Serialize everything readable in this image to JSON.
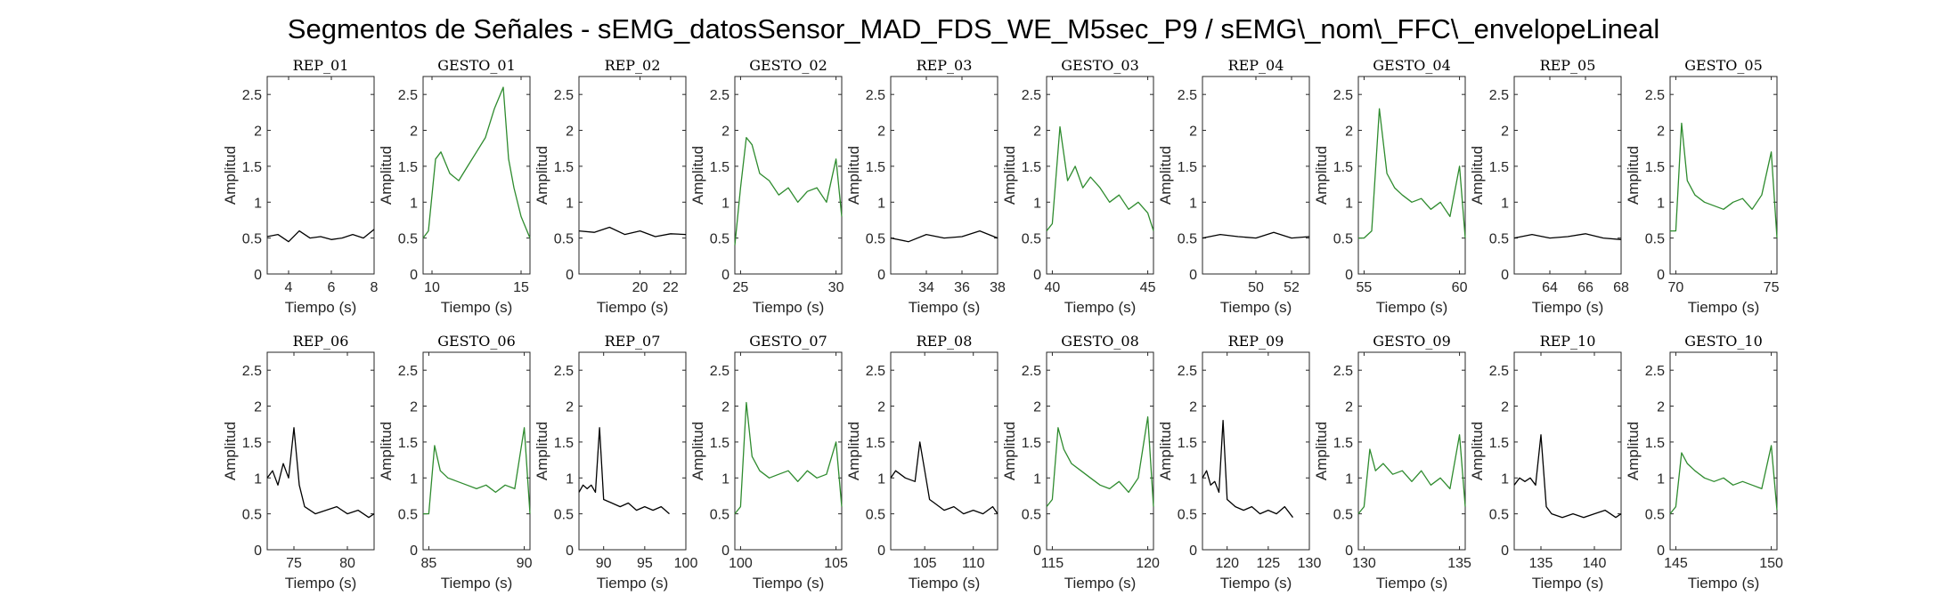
{
  "figure": {
    "title": "Segmentos de Señales - sEMG_datosSensor_MAD_FDS_WE_M5sec_P9 / sEMG\\_nom\\_FFC\\_envelopeLineal"
  },
  "colors": {
    "rep": "#000000",
    "gesto": "#2e8b2e",
    "axes": "#262626"
  },
  "chart_data": [
    {
      "type": "line",
      "title": "REP_01",
      "xlabel": "Tiempo (s)",
      "ylabel": "Amplitud",
      "xlim": [
        3,
        8
      ],
      "ylim": [
        0,
        2.75
      ],
      "xticks": [
        4,
        6,
        8
      ],
      "yticks": [
        0,
        0.5,
        1,
        1.5,
        2,
        2.5
      ],
      "series": [
        {
          "color": "rep",
          "x": [
            3,
            3.5,
            4,
            4.5,
            5,
            5.5,
            6,
            6.5,
            7,
            7.5,
            8
          ],
          "y": [
            0.52,
            0.55,
            0.45,
            0.6,
            0.5,
            0.52,
            0.48,
            0.5,
            0.55,
            0.5,
            0.62
          ]
        }
      ]
    },
    {
      "type": "line",
      "title": "GESTO_01",
      "xlabel": "Tiempo (s)",
      "ylabel": "Amplitud",
      "xlim": [
        9.5,
        15.5
      ],
      "ylim": [
        0,
        2.75
      ],
      "xticks": [
        10,
        15
      ],
      "yticks": [
        0,
        0.5,
        1,
        1.5,
        2,
        2.5
      ],
      "series": [
        {
          "color": "gesto",
          "x": [
            9.5,
            9.8,
            10.2,
            10.5,
            11,
            11.5,
            12,
            12.5,
            13,
            13.5,
            14,
            14.3,
            14.6,
            15,
            15.5
          ],
          "y": [
            0.5,
            0.6,
            1.6,
            1.7,
            1.4,
            1.3,
            1.5,
            1.7,
            1.9,
            2.3,
            2.6,
            1.6,
            1.2,
            0.8,
            0.5
          ]
        }
      ]
    },
    {
      "type": "line",
      "title": "REP_02",
      "xlabel": "Tiempo (s)",
      "ylabel": "Amplitud",
      "xlim": [
        16,
        23
      ],
      "ylim": [
        0,
        2.75
      ],
      "xticks": [
        20,
        22
      ],
      "yticks": [
        0,
        0.5,
        1,
        1.5,
        2,
        2.5
      ],
      "series": [
        {
          "color": "rep",
          "x": [
            16,
            17,
            18,
            19,
            20,
            21,
            22,
            23
          ],
          "y": [
            0.6,
            0.58,
            0.65,
            0.55,
            0.6,
            0.52,
            0.56,
            0.55
          ]
        }
      ]
    },
    {
      "type": "line",
      "title": "GESTO_02",
      "xlabel": "Tiempo (s)",
      "ylabel": "Amplitud",
      "xlim": [
        24.7,
        30.3
      ],
      "ylim": [
        0,
        2.75
      ],
      "xticks": [
        25,
        30
      ],
      "yticks": [
        0,
        0.5,
        1,
        1.5,
        2,
        2.5
      ],
      "series": [
        {
          "color": "gesto",
          "x": [
            24.7,
            25,
            25.3,
            25.6,
            26,
            26.5,
            27,
            27.5,
            28,
            28.5,
            29,
            29.5,
            30,
            30.3
          ],
          "y": [
            0.4,
            1.2,
            1.9,
            1.8,
            1.4,
            1.3,
            1.1,
            1.2,
            1.0,
            1.15,
            1.2,
            1.0,
            1.6,
            0.8
          ]
        }
      ]
    },
    {
      "type": "line",
      "title": "REP_03",
      "xlabel": "Tiempo (s)",
      "ylabel": "Amplitud",
      "xlim": [
        32,
        38
      ],
      "ylim": [
        0,
        2.75
      ],
      "xticks": [
        34,
        36,
        38
      ],
      "yticks": [
        0,
        0.5,
        1,
        1.5,
        2,
        2.5
      ],
      "series": [
        {
          "color": "rep",
          "x": [
            32,
            33,
            34,
            35,
            36,
            37,
            38
          ],
          "y": [
            0.5,
            0.45,
            0.55,
            0.5,
            0.52,
            0.6,
            0.5
          ]
        }
      ]
    },
    {
      "type": "line",
      "title": "GESTO_03",
      "xlabel": "Tiempo (s)",
      "ylabel": "Amplitud",
      "xlim": [
        39.7,
        45.3
      ],
      "ylim": [
        0,
        2.75
      ],
      "xticks": [
        40,
        45
      ],
      "yticks": [
        0,
        0.5,
        1,
        1.5,
        2,
        2.5
      ],
      "series": [
        {
          "color": "gesto",
          "x": [
            39.7,
            40,
            40.4,
            40.8,
            41.2,
            41.6,
            42,
            42.5,
            43,
            43.5,
            44,
            44.5,
            45,
            45.3
          ],
          "y": [
            0.6,
            0.7,
            2.05,
            1.3,
            1.5,
            1.2,
            1.35,
            1.2,
            1.0,
            1.1,
            0.9,
            1.0,
            0.85,
            0.6
          ]
        }
      ]
    },
    {
      "type": "line",
      "title": "REP_04",
      "xlabel": "Tiempo (s)",
      "ylabel": "Amplitud",
      "xlim": [
        47,
        53
      ],
      "ylim": [
        0,
        2.75
      ],
      "xticks": [
        50,
        52
      ],
      "yticks": [
        0,
        0.5,
        1,
        1.5,
        2,
        2.5
      ],
      "series": [
        {
          "color": "rep",
          "x": [
            47,
            48,
            49,
            50,
            51,
            52,
            53
          ],
          "y": [
            0.5,
            0.55,
            0.52,
            0.5,
            0.58,
            0.5,
            0.52
          ]
        }
      ]
    },
    {
      "type": "line",
      "title": "GESTO_04",
      "xlabel": "Tiempo (s)",
      "ylabel": "Amplitud",
      "xlim": [
        54.7,
        60.3
      ],
      "ylim": [
        0,
        2.75
      ],
      "xticks": [
        55,
        60
      ],
      "yticks": [
        0,
        0.5,
        1,
        1.5,
        2,
        2.5
      ],
      "series": [
        {
          "color": "gesto",
          "x": [
            54.7,
            55,
            55.4,
            55.8,
            56.2,
            56.6,
            57,
            57.5,
            58,
            58.5,
            59,
            59.5,
            60,
            60.3
          ],
          "y": [
            0.5,
            0.5,
            0.6,
            2.3,
            1.4,
            1.2,
            1.1,
            1.0,
            1.05,
            0.9,
            1.0,
            0.8,
            1.5,
            0.5
          ]
        }
      ]
    },
    {
      "type": "line",
      "title": "REP_05",
      "xlabel": "Tiempo (s)",
      "ylabel": "Amplitud",
      "xlim": [
        62,
        68
      ],
      "ylim": [
        0,
        2.75
      ],
      "xticks": [
        64,
        66,
        68
      ],
      "yticks": [
        0,
        0.5,
        1,
        1.5,
        2,
        2.5
      ],
      "series": [
        {
          "color": "rep",
          "x": [
            62,
            63,
            64,
            65,
            66,
            67,
            68
          ],
          "y": [
            0.5,
            0.55,
            0.5,
            0.52,
            0.56,
            0.5,
            0.48
          ]
        }
      ]
    },
    {
      "type": "line",
      "title": "GESTO_05",
      "xlabel": "Tiempo (s)",
      "ylabel": "Amplitud",
      "xlim": [
        69.7,
        75.3
      ],
      "ylim": [
        0,
        2.75
      ],
      "xticks": [
        70,
        75
      ],
      "yticks": [
        0,
        0.5,
        1,
        1.5,
        2,
        2.5
      ],
      "series": [
        {
          "color": "gesto",
          "x": [
            69.7,
            70,
            70.3,
            70.6,
            71,
            71.5,
            72,
            72.5,
            73,
            73.5,
            74,
            74.5,
            75,
            75.3
          ],
          "y": [
            0.6,
            0.6,
            2.1,
            1.3,
            1.1,
            1.0,
            0.95,
            0.9,
            1.0,
            1.05,
            0.9,
            1.1,
            1.7,
            0.5
          ]
        }
      ]
    },
    {
      "type": "line",
      "title": "REP_06",
      "xlabel": "Tiempo (s)",
      "ylabel": "Amplitud",
      "xlim": [
        72.5,
        82.5
      ],
      "ylim": [
        0,
        2.75
      ],
      "xticks": [
        75,
        80
      ],
      "yticks": [
        0,
        0.5,
        1,
        1.5,
        2,
        2.5
      ],
      "series": [
        {
          "color": "rep",
          "x": [
            72.5,
            73,
            73.5,
            74,
            74.5,
            75,
            75.5,
            76,
            77,
            78,
            79,
            80,
            81,
            82,
            82.5
          ],
          "y": [
            1.0,
            1.1,
            0.9,
            1.2,
            1.0,
            1.7,
            0.9,
            0.6,
            0.5,
            0.55,
            0.6,
            0.5,
            0.55,
            0.45,
            0.5
          ]
        }
      ]
    },
    {
      "type": "line",
      "title": "GESTO_06",
      "xlabel": "Tiempo (s)",
      "ylabel": "Amplitud",
      "xlim": [
        84.7,
        90.3
      ],
      "ylim": [
        0,
        2.75
      ],
      "xticks": [
        85,
        90
      ],
      "yticks": [
        0,
        0.5,
        1,
        1.5,
        2,
        2.5
      ],
      "series": [
        {
          "color": "gesto",
          "x": [
            84.7,
            85,
            85.3,
            85.6,
            86,
            86.5,
            87,
            87.5,
            88,
            88.5,
            89,
            89.5,
            90,
            90.3
          ],
          "y": [
            0.5,
            0.5,
            1.45,
            1.1,
            1.0,
            0.95,
            0.9,
            0.85,
            0.9,
            0.8,
            0.9,
            0.85,
            1.7,
            0.5
          ]
        }
      ]
    },
    {
      "type": "line",
      "title": "REP_07",
      "xlabel": "Tiempo (s)",
      "ylabel": "Amplitud",
      "xlim": [
        87,
        100
      ],
      "ylim": [
        0,
        2.75
      ],
      "xticks": [
        90,
        95,
        100
      ],
      "yticks": [
        0,
        0.5,
        1,
        1.5,
        2,
        2.5
      ],
      "series": [
        {
          "color": "rep",
          "x": [
            87,
            87.5,
            88,
            88.5,
            89,
            89.5,
            90,
            91,
            92,
            93,
            94,
            95,
            96,
            97,
            98
          ],
          "y": [
            0.8,
            0.9,
            0.85,
            0.9,
            0.8,
            1.7,
            0.7,
            0.65,
            0.6,
            0.65,
            0.55,
            0.6,
            0.55,
            0.6,
            0.5
          ]
        }
      ]
    },
    {
      "type": "line",
      "title": "GESTO_07",
      "xlabel": "Tiempo (s)",
      "ylabel": "Amplitud",
      "xlim": [
        99.7,
        105.3
      ],
      "ylim": [
        0,
        2.75
      ],
      "xticks": [
        100,
        105
      ],
      "yticks": [
        0,
        0.5,
        1,
        1.5,
        2,
        2.5
      ],
      "series": [
        {
          "color": "gesto",
          "x": [
            99.7,
            100,
            100.3,
            100.6,
            101,
            101.5,
            102,
            102.5,
            103,
            103.5,
            104,
            104.5,
            105,
            105.3
          ],
          "y": [
            0.5,
            0.6,
            2.05,
            1.3,
            1.1,
            1.0,
            1.05,
            1.1,
            0.95,
            1.1,
            1.0,
            1.05,
            1.5,
            0.6
          ]
        }
      ]
    },
    {
      "type": "line",
      "title": "REP_08",
      "xlabel": "Tiempo (s)",
      "ylabel": "Amplitud",
      "xlim": [
        101.5,
        112.5
      ],
      "ylim": [
        0,
        2.75
      ],
      "xticks": [
        105,
        110
      ],
      "yticks": [
        0,
        0.5,
        1,
        1.5,
        2,
        2.5
      ],
      "series": [
        {
          "color": "rep",
          "x": [
            101.5,
            102,
            103,
            104,
            104.5,
            105,
            105.5,
            106,
            107,
            108,
            109,
            110,
            111,
            112,
            112.5
          ],
          "y": [
            1.0,
            1.1,
            1.0,
            0.95,
            1.5,
            1.1,
            0.7,
            0.65,
            0.55,
            0.6,
            0.5,
            0.55,
            0.5,
            0.6,
            0.5
          ]
        }
      ]
    },
    {
      "type": "line",
      "title": "GESTO_08",
      "xlabel": "Tiempo (s)",
      "ylabel": "Amplitud",
      "xlim": [
        114.7,
        120.3
      ],
      "ylim": [
        0,
        2.75
      ],
      "xticks": [
        115,
        120
      ],
      "yticks": [
        0,
        0.5,
        1,
        1.5,
        2,
        2.5
      ],
      "series": [
        {
          "color": "gesto",
          "x": [
            114.7,
            115,
            115.3,
            115.6,
            116,
            116.5,
            117,
            117.5,
            118,
            118.5,
            119,
            119.5,
            120,
            120.3
          ],
          "y": [
            0.6,
            0.7,
            1.7,
            1.4,
            1.2,
            1.1,
            1.0,
            0.9,
            0.85,
            0.95,
            0.8,
            1.0,
            1.85,
            0.6
          ]
        }
      ]
    },
    {
      "type": "line",
      "title": "REP_09",
      "xlabel": "Tiempo (s)",
      "ylabel": "Amplitud",
      "xlim": [
        117,
        130
      ],
      "ylim": [
        0,
        2.75
      ],
      "xticks": [
        120,
        125,
        130
      ],
      "yticks": [
        0,
        0.5,
        1,
        1.5,
        2,
        2.5
      ],
      "series": [
        {
          "color": "rep",
          "x": [
            117,
            117.5,
            118,
            118.5,
            119,
            119.5,
            120,
            120.5,
            121,
            122,
            123,
            124,
            125,
            126,
            127,
            128
          ],
          "y": [
            1.0,
            1.1,
            0.9,
            0.95,
            0.8,
            1.8,
            0.7,
            0.65,
            0.6,
            0.55,
            0.6,
            0.5,
            0.55,
            0.5,
            0.6,
            0.45
          ]
        }
      ]
    },
    {
      "type": "line",
      "title": "GESTO_09",
      "xlabel": "Tiempo (s)",
      "ylabel": "Amplitud",
      "xlim": [
        129.7,
        135.3
      ],
      "ylim": [
        0,
        2.75
      ],
      "xticks": [
        130,
        135
      ],
      "yticks": [
        0,
        0.5,
        1,
        1.5,
        2,
        2.5
      ],
      "series": [
        {
          "color": "gesto",
          "x": [
            129.7,
            130,
            130.3,
            130.6,
            131,
            131.5,
            132,
            132.5,
            133,
            133.5,
            134,
            134.5,
            135,
            135.3
          ],
          "y": [
            0.5,
            0.6,
            1.4,
            1.1,
            1.2,
            1.05,
            1.1,
            0.95,
            1.1,
            0.9,
            1.0,
            0.85,
            1.6,
            0.6
          ]
        }
      ]
    },
    {
      "type": "line",
      "title": "REP_10",
      "xlabel": "Tiempo (s)",
      "ylabel": "Amplitud",
      "xlim": [
        132.5,
        142.5
      ],
      "ylim": [
        0,
        2.75
      ],
      "xticks": [
        135,
        140
      ],
      "yticks": [
        0,
        0.5,
        1,
        1.5,
        2,
        2.5
      ],
      "series": [
        {
          "color": "rep",
          "x": [
            132.5,
            133,
            133.5,
            134,
            134.5,
            135,
            135.5,
            136,
            137,
            138,
            139,
            140,
            141,
            142,
            142.5
          ],
          "y": [
            0.9,
            1.0,
            0.95,
            1.0,
            0.9,
            1.6,
            0.6,
            0.5,
            0.45,
            0.5,
            0.45,
            0.5,
            0.55,
            0.45,
            0.5
          ]
        }
      ]
    },
    {
      "type": "line",
      "title": "GESTO_10",
      "xlabel": "Tiempo (s)",
      "ylabel": "Amplitud",
      "xlim": [
        144.7,
        150.3
      ],
      "ylim": [
        0,
        2.75
      ],
      "xticks": [
        145,
        150
      ],
      "yticks": [
        0,
        0.5,
        1,
        1.5,
        2,
        2.5
      ],
      "series": [
        {
          "color": "gesto",
          "x": [
            144.7,
            145,
            145.3,
            145.6,
            146,
            146.5,
            147,
            147.5,
            148,
            148.5,
            149,
            149.5,
            150,
            150.3
          ],
          "y": [
            0.5,
            0.6,
            1.35,
            1.2,
            1.1,
            1.0,
            0.95,
            1.0,
            0.9,
            0.95,
            0.9,
            0.85,
            1.45,
            0.55
          ]
        }
      ]
    }
  ]
}
